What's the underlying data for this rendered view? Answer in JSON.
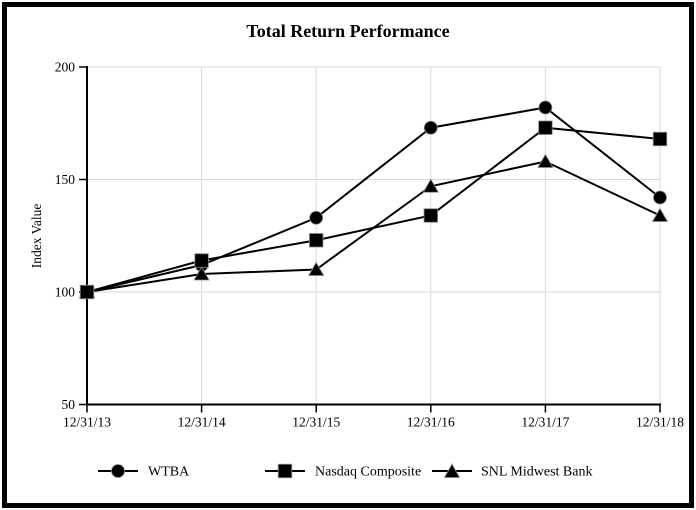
{
  "chart_data": {
    "type": "line",
    "title": "Total Return Performance",
    "xlabel": "",
    "ylabel": "Index Value",
    "categories": [
      "12/31/13",
      "12/31/14",
      "12/31/15",
      "12/31/16",
      "12/31/17",
      "12/31/18"
    ],
    "series": [
      {
        "name": "WTBA",
        "marker": "circle",
        "values": [
          100,
          112,
          133,
          173,
          182,
          142
        ]
      },
      {
        "name": "Nasdaq Composite",
        "marker": "square",
        "values": [
          100,
          114,
          123,
          134,
          173,
          168
        ]
      },
      {
        "name": "SNL Midwest Bank",
        "marker": "triangle",
        "values": [
          100,
          108,
          110,
          147,
          158,
          134
        ]
      }
    ],
    "yticks": [
      200,
      150,
      100,
      50
    ],
    "ylim": [
      50,
      200
    ],
    "grid": true,
    "legend_position": "bottom",
    "colors": {
      "line": "#000000",
      "marker": "#000000",
      "marker_halo": "#888888",
      "grid": "#d9d9d9",
      "text": "#000000",
      "background": "#ffffff",
      "frame_border": "#000000"
    }
  }
}
